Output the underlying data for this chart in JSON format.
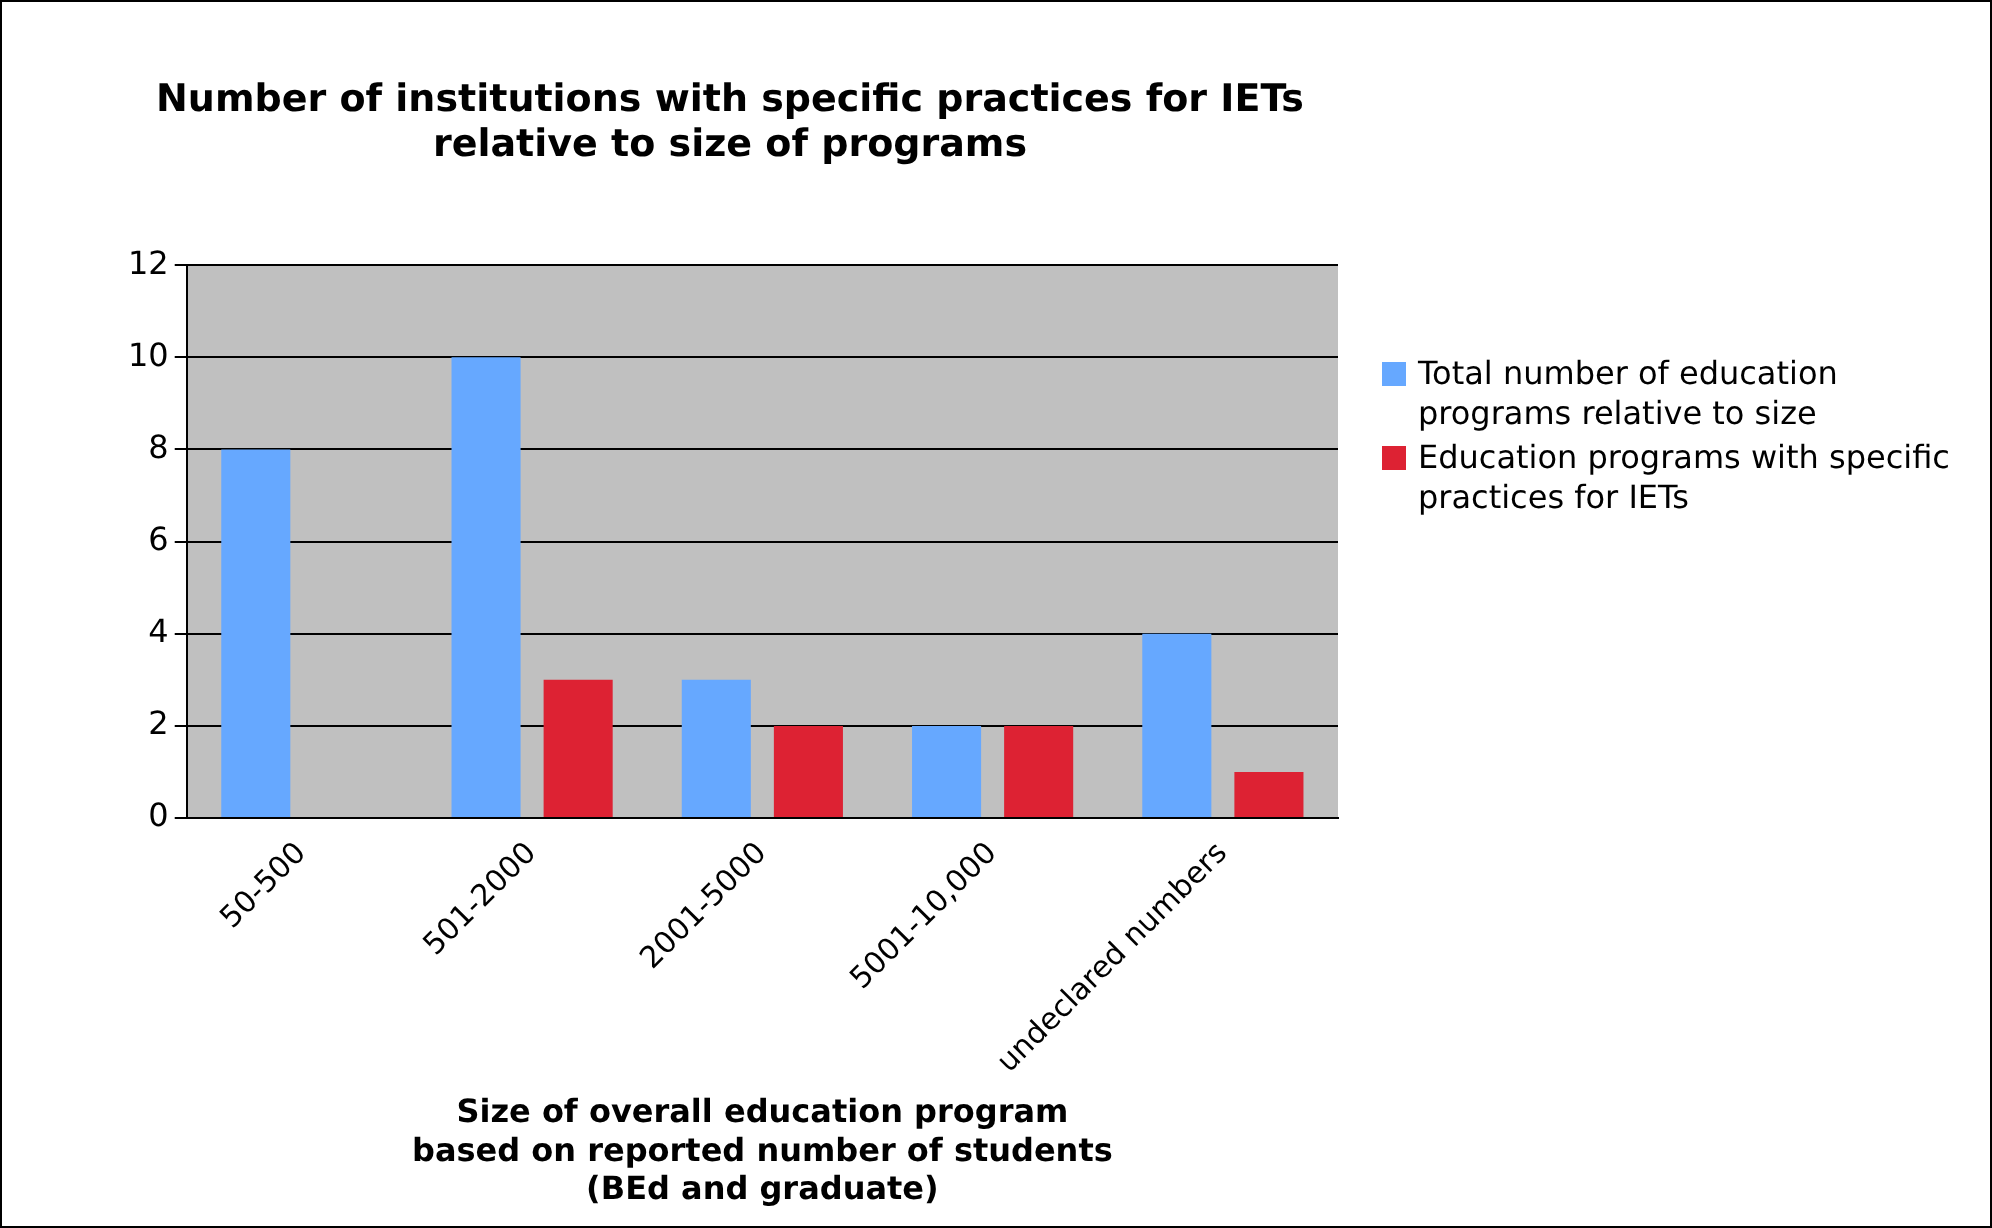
{
  "chart_data": {
    "type": "bar",
    "title": "Number of institutions with specific practices for IETs relative to size of programs",
    "xlabel": "Size of overall education program based on reported number of students (BEd and graduate)",
    "categories": [
      "50-500",
      "501-2000",
      "2001-5000",
      "5001-10,000",
      "undeclared numbers"
    ],
    "series": [
      {
        "name": "Total number of education programs relative to size",
        "color": "#66a8ff",
        "values": [
          8,
          10,
          3,
          2,
          4
        ]
      },
      {
        "name": "Education programs with specific practices for IETs",
        "color": "#dd2233",
        "values": [
          null,
          3,
          2,
          2,
          1
        ]
      }
    ],
    "ylim": [
      0,
      12
    ],
    "yticks": [
      0,
      2,
      4,
      6,
      8,
      10,
      12
    ],
    "grid": "y",
    "legend": "right"
  }
}
